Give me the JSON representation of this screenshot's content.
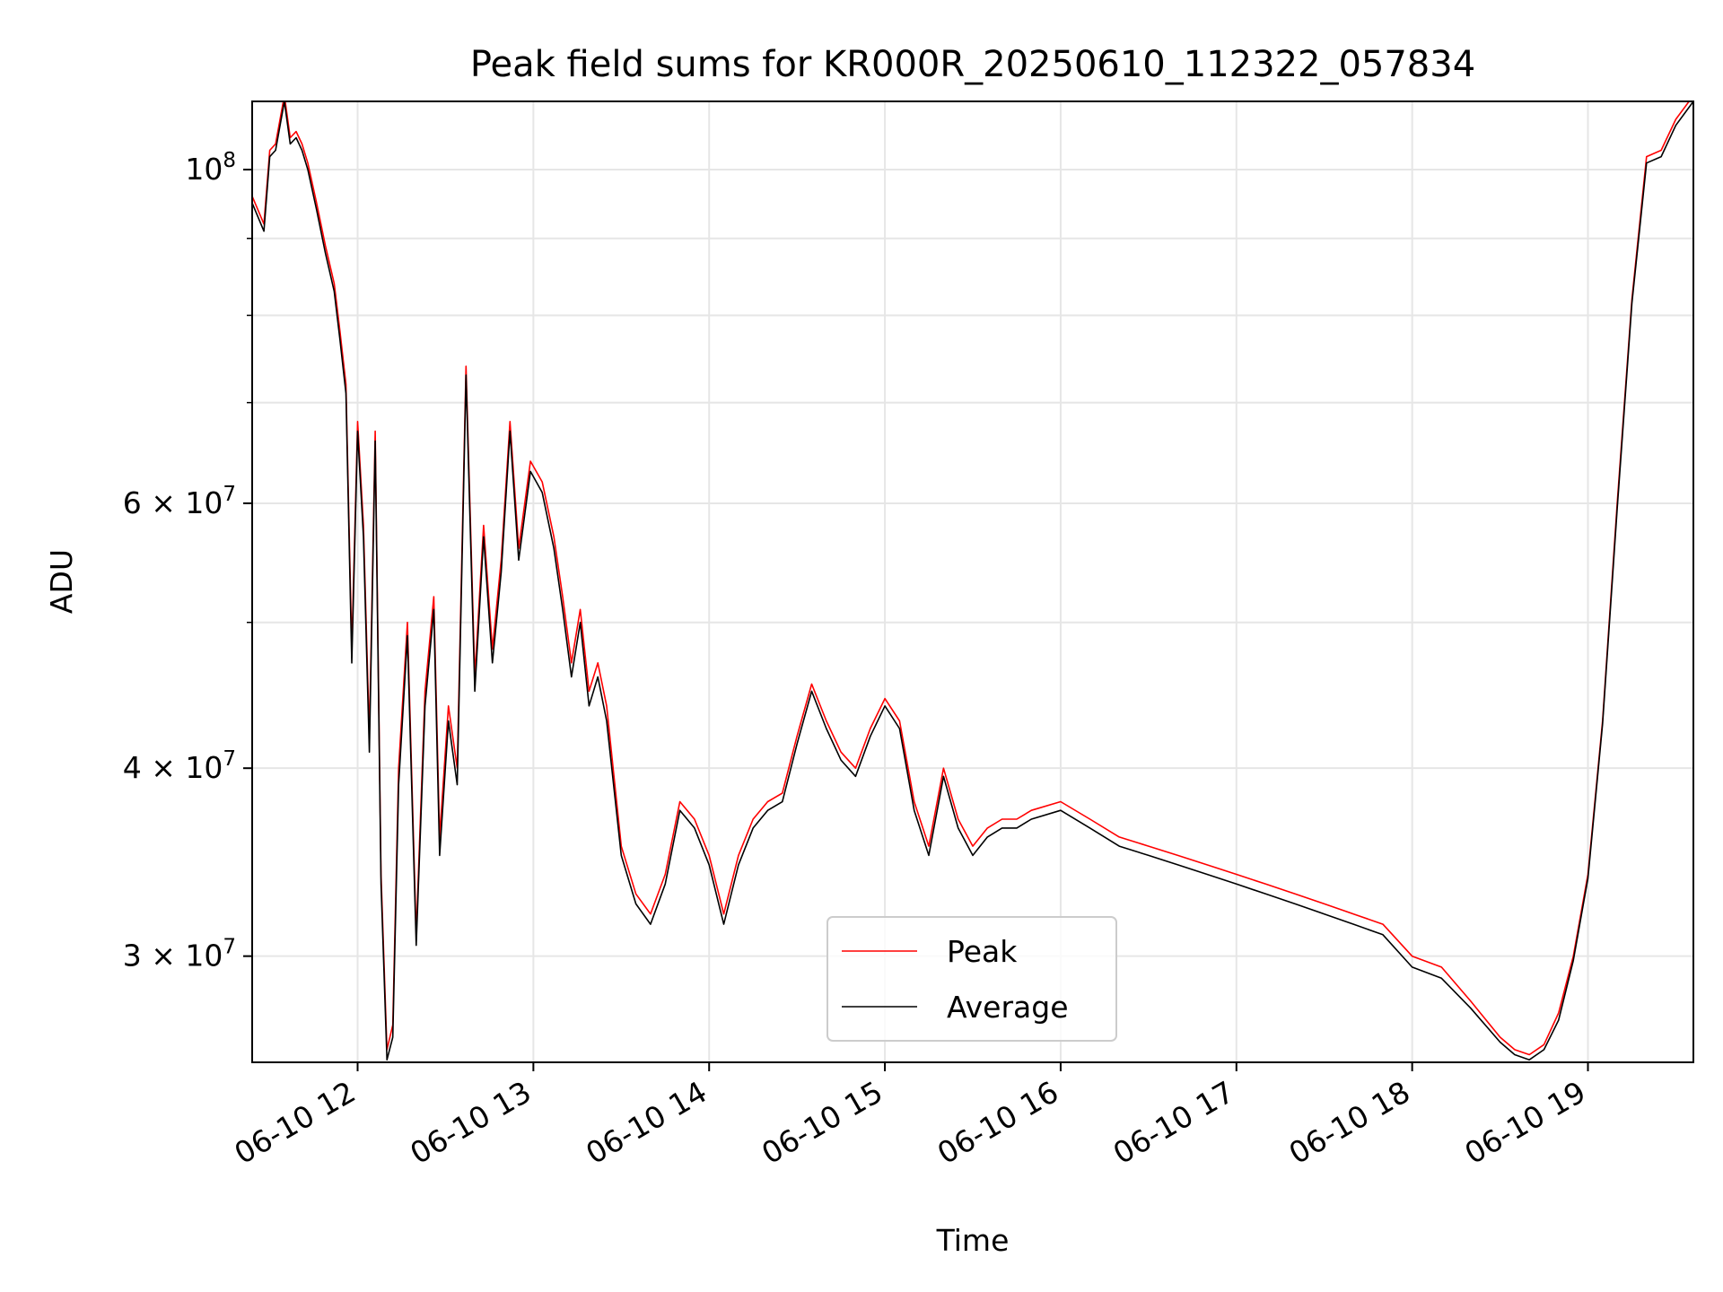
{
  "chart_data": {
    "type": "line",
    "title": "Peak field sums for KR000R_20250610_112322_057834",
    "xlabel": "Time",
    "ylabel": "ADU",
    "yscale": "log",
    "grid": true,
    "legend_position": "lower center",
    "xlim": [
      "2025-06-10 11:24",
      "2025-06-10 19:36"
    ],
    "ylim": [
      25500000,
      111000000
    ],
    "x_ticks": [
      {
        "at": "2025-06-10 12:00",
        "label": "06-10 12"
      },
      {
        "at": "2025-06-10 13:00",
        "label": "06-10 13"
      },
      {
        "at": "2025-06-10 14:00",
        "label": "06-10 14"
      },
      {
        "at": "2025-06-10 15:00",
        "label": "06-10 15"
      },
      {
        "at": "2025-06-10 16:00",
        "label": "06-10 16"
      },
      {
        "at": "2025-06-10 17:00",
        "label": "06-10 17"
      },
      {
        "at": "2025-06-10 18:00",
        "label": "06-10 18"
      },
      {
        "at": "2025-06-10 19:00",
        "label": "06-10 19"
      }
    ],
    "y_ticks": [
      {
        "value": 30000000,
        "label": "3 × 10",
        "exp": "7"
      },
      {
        "value": 40000000,
        "label": "4 × 10",
        "exp": "7"
      },
      {
        "value": 60000000,
        "label": "6 × 10",
        "exp": "7"
      },
      {
        "value": 100000000,
        "label": "10",
        "exp": "8"
      }
    ],
    "y_minor_ticks": [
      50000000,
      70000000,
      80000000,
      90000000
    ],
    "series": [
      {
        "name": "Peak",
        "color": "#ff0000",
        "x": [
          "2025-06-10 11:24",
          "2025-06-10 11:28",
          "2025-06-10 11:30",
          "2025-06-10 11:32",
          "2025-06-10 11:35",
          "2025-06-10 11:37",
          "2025-06-10 11:39",
          "2025-06-10 11:41",
          "2025-06-10 11:43",
          "2025-06-10 11:46",
          "2025-06-10 11:49",
          "2025-06-10 11:52",
          "2025-06-10 11:54",
          "2025-06-10 11:56",
          "2025-06-10 11:58",
          "2025-06-10 12:00",
          "2025-06-10 12:02",
          "2025-06-10 12:04",
          "2025-06-10 12:06",
          "2025-06-10 12:08",
          "2025-06-10 12:10",
          "2025-06-10 12:12",
          "2025-06-10 12:14",
          "2025-06-10 12:17",
          "2025-06-10 12:20",
          "2025-06-10 12:23",
          "2025-06-10 12:26",
          "2025-06-10 12:28",
          "2025-06-10 12:31",
          "2025-06-10 12:34",
          "2025-06-10 12:37",
          "2025-06-10 12:40",
          "2025-06-10 12:43",
          "2025-06-10 12:46",
          "2025-06-10 12:49",
          "2025-06-10 12:52",
          "2025-06-10 12:55",
          "2025-06-10 12:59",
          "2025-06-10 13:03",
          "2025-06-10 13:07",
          "2025-06-10 13:10",
          "2025-06-10 13:13",
          "2025-06-10 13:16",
          "2025-06-10 13:19",
          "2025-06-10 13:22",
          "2025-06-10 13:25",
          "2025-06-10 13:30",
          "2025-06-10 13:35",
          "2025-06-10 13:40",
          "2025-06-10 13:45",
          "2025-06-10 13:50",
          "2025-06-10 13:55",
          "2025-06-10 14:00",
          "2025-06-10 14:05",
          "2025-06-10 14:10",
          "2025-06-10 14:15",
          "2025-06-10 14:20",
          "2025-06-10 14:25",
          "2025-06-10 14:30",
          "2025-06-10 14:35",
          "2025-06-10 14:40",
          "2025-06-10 14:45",
          "2025-06-10 14:50",
          "2025-06-10 14:55",
          "2025-06-10 15:00",
          "2025-06-10 15:05",
          "2025-06-10 15:10",
          "2025-06-10 15:15",
          "2025-06-10 15:20",
          "2025-06-10 15:25",
          "2025-06-10 15:30",
          "2025-06-10 15:35",
          "2025-06-10 15:40",
          "2025-06-10 15:45",
          "2025-06-10 15:50",
          "2025-06-10 16:00",
          "2025-06-10 16:10",
          "2025-06-10 16:20",
          "2025-06-10 16:30",
          "2025-06-10 16:40",
          "2025-06-10 16:50",
          "2025-06-10 17:00",
          "2025-06-10 17:10",
          "2025-06-10 17:20",
          "2025-06-10 17:30",
          "2025-06-10 17:40",
          "2025-06-10 17:50",
          "2025-06-10 18:00",
          "2025-06-10 18:10",
          "2025-06-10 18:20",
          "2025-06-10 18:30",
          "2025-06-10 18:35",
          "2025-06-10 18:40",
          "2025-06-10 18:45",
          "2025-06-10 18:50",
          "2025-06-10 18:55",
          "2025-06-10 19:00",
          "2025-06-10 19:05",
          "2025-06-10 19:10",
          "2025-06-10 19:15",
          "2025-06-10 19:20",
          "2025-06-10 19:25",
          "2025-06-10 19:30",
          "2025-06-10 19:36"
        ],
        "y": [
          96000000,
          92000000,
          103000000,
          104000000,
          112000000,
          105000000,
          106000000,
          104000000,
          101000000,
          95000000,
          89000000,
          84000000,
          78000000,
          72000000,
          48000000,
          68000000,
          58000000,
          42000000,
          67000000,
          34000000,
          26000000,
          27000000,
          40000000,
          50000000,
          31000000,
          45000000,
          52000000,
          36000000,
          44000000,
          40000000,
          74000000,
          46000000,
          58000000,
          48000000,
          55000000,
          68000000,
          56000000,
          64000000,
          62000000,
          57000000,
          52000000,
          47000000,
          51000000,
          45000000,
          47000000,
          44000000,
          35500000,
          33000000,
          32000000,
          34000000,
          38000000,
          37000000,
          35000000,
          32000000,
          35000000,
          37000000,
          38000000,
          38500000,
          42000000,
          45500000,
          43000000,
          41000000,
          40000000,
          42500000,
          44500000,
          43000000,
          38000000,
          35500000,
          40000000,
          37000000,
          35500000,
          36500000,
          37000000,
          37000000,
          37500000,
          38000000,
          37000000,
          36000000,
          35500000,
          35000000,
          34500000,
          34000000,
          33500000,
          33000000,
          32500000,
          32000000,
          31500000,
          30000000,
          29500000,
          28000000,
          26500000,
          26000000,
          25800000,
          26200000,
          27500000,
          30000000,
          34000000,
          43000000,
          60000000,
          82000000,
          102000000,
          103000000,
          108000000,
          112000000
        ]
      },
      {
        "name": "Average",
        "color": "#000000",
        "x": [
          "2025-06-10 11:24",
          "2025-06-10 11:28",
          "2025-06-10 11:30",
          "2025-06-10 11:32",
          "2025-06-10 11:35",
          "2025-06-10 11:37",
          "2025-06-10 11:39",
          "2025-06-10 11:41",
          "2025-06-10 11:43",
          "2025-06-10 11:46",
          "2025-06-10 11:49",
          "2025-06-10 11:52",
          "2025-06-10 11:54",
          "2025-06-10 11:56",
          "2025-06-10 11:58",
          "2025-06-10 12:00",
          "2025-06-10 12:02",
          "2025-06-10 12:04",
          "2025-06-10 12:06",
          "2025-06-10 12:08",
          "2025-06-10 12:10",
          "2025-06-10 12:12",
          "2025-06-10 12:14",
          "2025-06-10 12:17",
          "2025-06-10 12:20",
          "2025-06-10 12:23",
          "2025-06-10 12:26",
          "2025-06-10 12:28",
          "2025-06-10 12:31",
          "2025-06-10 12:34",
          "2025-06-10 12:37",
          "2025-06-10 12:40",
          "2025-06-10 12:43",
          "2025-06-10 12:46",
          "2025-06-10 12:49",
          "2025-06-10 12:52",
          "2025-06-10 12:55",
          "2025-06-10 12:59",
          "2025-06-10 13:03",
          "2025-06-10 13:07",
          "2025-06-10 13:10",
          "2025-06-10 13:13",
          "2025-06-10 13:16",
          "2025-06-10 13:19",
          "2025-06-10 13:22",
          "2025-06-10 13:25",
          "2025-06-10 13:30",
          "2025-06-10 13:35",
          "2025-06-10 13:40",
          "2025-06-10 13:45",
          "2025-06-10 13:50",
          "2025-06-10 13:55",
          "2025-06-10 14:00",
          "2025-06-10 14:05",
          "2025-06-10 14:10",
          "2025-06-10 14:15",
          "2025-06-10 14:20",
          "2025-06-10 14:25",
          "2025-06-10 14:30",
          "2025-06-10 14:35",
          "2025-06-10 14:40",
          "2025-06-10 14:45",
          "2025-06-10 14:50",
          "2025-06-10 14:55",
          "2025-06-10 15:00",
          "2025-06-10 15:05",
          "2025-06-10 15:10",
          "2025-06-10 15:15",
          "2025-06-10 15:20",
          "2025-06-10 15:25",
          "2025-06-10 15:30",
          "2025-06-10 15:35",
          "2025-06-10 15:40",
          "2025-06-10 15:45",
          "2025-06-10 15:50",
          "2025-06-10 16:00",
          "2025-06-10 16:10",
          "2025-06-10 16:20",
          "2025-06-10 16:30",
          "2025-06-10 16:40",
          "2025-06-10 16:50",
          "2025-06-10 17:00",
          "2025-06-10 17:10",
          "2025-06-10 17:20",
          "2025-06-10 17:30",
          "2025-06-10 17:40",
          "2025-06-10 17:50",
          "2025-06-10 18:00",
          "2025-06-10 18:10",
          "2025-06-10 18:20",
          "2025-06-10 18:30",
          "2025-06-10 18:35",
          "2025-06-10 18:40",
          "2025-06-10 18:45",
          "2025-06-10 18:50",
          "2025-06-10 18:55",
          "2025-06-10 19:00",
          "2025-06-10 19:05",
          "2025-06-10 19:10",
          "2025-06-10 19:15",
          "2025-06-10 19:20",
          "2025-06-10 19:25",
          "2025-06-10 19:30",
          "2025-06-10 19:36"
        ],
        "y": [
          95000000,
          91000000,
          102000000,
          103000000,
          111000000,
          104000000,
          105000000,
          103000000,
          100000000,
          94000000,
          88000000,
          83000000,
          77000000,
          71000000,
          47000000,
          67000000,
          57000000,
          41000000,
          66000000,
          33500000,
          25600000,
          26500000,
          39000000,
          49000000,
          30500000,
          44000000,
          51000000,
          35000000,
          43000000,
          39000000,
          73000000,
          45000000,
          57000000,
          47000000,
          54000000,
          67000000,
          55000000,
          63000000,
          61000000,
          56000000,
          51000000,
          46000000,
          50000000,
          44000000,
          46000000,
          43000000,
          35000000,
          32500000,
          31500000,
          33500000,
          37500000,
          36500000,
          34500000,
          31500000,
          34500000,
          36500000,
          37500000,
          38000000,
          41500000,
          45000000,
          42500000,
          40500000,
          39500000,
          42000000,
          44000000,
          42500000,
          37500000,
          35000000,
          39500000,
          36500000,
          35000000,
          36000000,
          36500000,
          36500000,
          37000000,
          37500000,
          36500000,
          35500000,
          35000000,
          34500000,
          34000000,
          33500000,
          33000000,
          32500000,
          32000000,
          31500000,
          31000000,
          29500000,
          29000000,
          27700000,
          26300000,
          25800000,
          25600000,
          26000000,
          27200000,
          29800000,
          33800000,
          42800000,
          59500000,
          81500000,
          101000000,
          102000000,
          107000000,
          111000000
        ]
      }
    ]
  }
}
